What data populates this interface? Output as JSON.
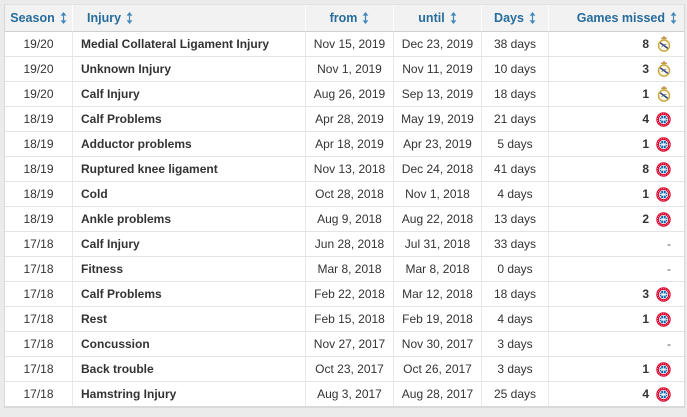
{
  "table": {
    "columns": [
      {
        "key": "season",
        "label": "Season",
        "sortable": true
      },
      {
        "key": "injury",
        "label": "Injury",
        "sortable": true
      },
      {
        "key": "from",
        "label": "from",
        "sortable": true
      },
      {
        "key": "until",
        "label": "until",
        "sortable": true
      },
      {
        "key": "days",
        "label": "Days",
        "sortable": true
      },
      {
        "key": "games",
        "label": "Games missed",
        "sortable": true
      }
    ],
    "rows": [
      {
        "season": "19/20",
        "injury": "Medial Collateral Ligament Injury",
        "from": "Nov 15, 2019",
        "until": "Dec 23, 2019",
        "days": "38 days",
        "games_missed": "8",
        "club": "real-madrid"
      },
      {
        "season": "19/20",
        "injury": "Unknown Injury",
        "from": "Nov 1, 2019",
        "until": "Nov 11, 2019",
        "days": "10 days",
        "games_missed": "3",
        "club": "real-madrid"
      },
      {
        "season": "19/20",
        "injury": "Calf Injury",
        "from": "Aug 26, 2019",
        "until": "Sep 13, 2019",
        "days": "18 days",
        "games_missed": "1",
        "club": "real-madrid"
      },
      {
        "season": "18/19",
        "injury": "Calf Problems",
        "from": "Apr 28, 2019",
        "until": "May 19, 2019",
        "days": "21 days",
        "games_missed": "4",
        "club": "bayern-munich"
      },
      {
        "season": "18/19",
        "injury": "Adductor problems",
        "from": "Apr 18, 2019",
        "until": "Apr 23, 2019",
        "days": "5 days",
        "games_missed": "1",
        "club": "bayern-munich"
      },
      {
        "season": "18/19",
        "injury": "Ruptured knee ligament",
        "from": "Nov 13, 2018",
        "until": "Dec 24, 2018",
        "days": "41 days",
        "games_missed": "8",
        "club": "bayern-munich"
      },
      {
        "season": "18/19",
        "injury": "Cold",
        "from": "Oct 28, 2018",
        "until": "Nov 1, 2018",
        "days": "4 days",
        "games_missed": "1",
        "club": "bayern-munich"
      },
      {
        "season": "18/19",
        "injury": "Ankle problems",
        "from": "Aug 9, 2018",
        "until": "Aug 22, 2018",
        "days": "13 days",
        "games_missed": "2",
        "club": "bayern-munich"
      },
      {
        "season": "17/18",
        "injury": "Calf Injury",
        "from": "Jun 28, 2018",
        "until": "Jul 31, 2018",
        "days": "33 days",
        "games_missed": "-",
        "club": null
      },
      {
        "season": "17/18",
        "injury": "Fitness",
        "from": "Mar 8, 2018",
        "until": "Mar 8, 2018",
        "days": "0 days",
        "games_missed": "-",
        "club": null
      },
      {
        "season": "17/18",
        "injury": "Calf Problems",
        "from": "Feb 22, 2018",
        "until": "Mar 12, 2018",
        "days": "18 days",
        "games_missed": "3",
        "club": "bayern-munich"
      },
      {
        "season": "17/18",
        "injury": "Rest",
        "from": "Feb 15, 2018",
        "until": "Feb 19, 2018",
        "days": "4 days",
        "games_missed": "1",
        "club": "bayern-munich"
      },
      {
        "season": "17/18",
        "injury": "Concussion",
        "from": "Nov 27, 2017",
        "until": "Nov 30, 2017",
        "days": "3 days",
        "games_missed": "-",
        "club": null
      },
      {
        "season": "17/18",
        "injury": "Back trouble",
        "from": "Oct 23, 2017",
        "until": "Oct 26, 2017",
        "days": "3 days",
        "games_missed": "1",
        "club": "bayern-munich"
      },
      {
        "season": "17/18",
        "injury": "Hamstring Injury",
        "from": "Aug 3, 2017",
        "until": "Aug 28, 2017",
        "days": "25 days",
        "games_missed": "4",
        "club": "bayern-munich"
      }
    ]
  },
  "icons": {
    "sort": "sort-arrows-icon",
    "real_madrid": "real-madrid-crest-icon",
    "bayern_munich": "bayern-munich-crest-icon"
  },
  "colors": {
    "header_text": "#266c9d",
    "sort_icon": "#4287b9",
    "header_bg": "#f2f2f2",
    "page_bg": "#ebebeb",
    "body_text": "#333333",
    "row_border": "#e4e4e4",
    "bayern_red": "#dc052d",
    "bayern_blue": "#0066b2",
    "real_madrid_gold": "#c9a63b",
    "real_madrid_crown_red": "#c0392b",
    "crest_band_blue": "#27408b"
  }
}
